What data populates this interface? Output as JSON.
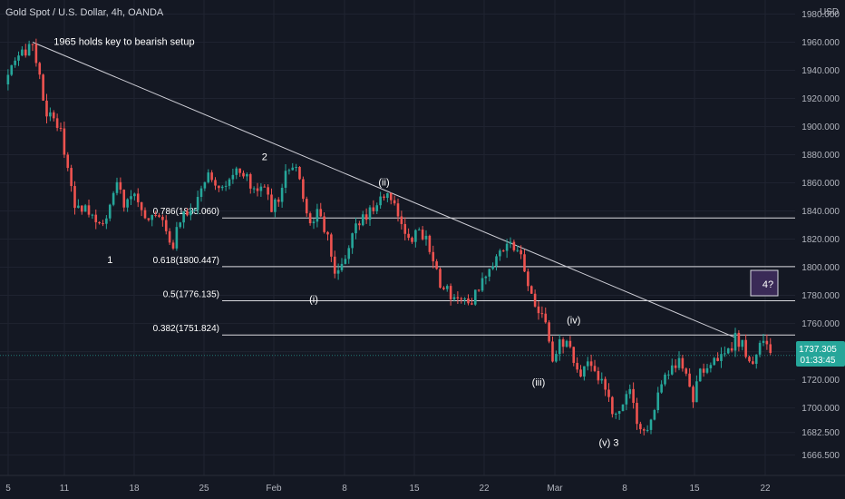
{
  "header": {
    "symbol": "Gold Spot / U.S. Dollar, 4h, OANDA",
    "currency": "USD"
  },
  "price_badge": {
    "price": "1737.305",
    "countdown": "01:33:45",
    "color": "#26a69a"
  },
  "colors": {
    "background": "#141823",
    "grid": "#1f2330",
    "up": "#26a69a",
    "down": "#ef5350",
    "text": "#b2b5be",
    "annotation": "#ffffff",
    "box_fill": "#3a2a57"
  },
  "chart_data": {
    "type": "candlestick",
    "timeframe": "4h",
    "x_ticks": [
      "5",
      "11",
      "18",
      "25",
      "Feb",
      "8",
      "15",
      "22",
      "Mar",
      "8",
      "15",
      "22"
    ],
    "y_ticks": [
      1980,
      1960,
      1940,
      1920,
      1900,
      1880,
      1860,
      1840,
      1820,
      1800,
      1780,
      1760,
      1740,
      1720,
      1700,
      1682.5,
      1666.5
    ],
    "y_tick_labels": [
      "1980.000",
      "1960.000",
      "1940.000",
      "1920.000",
      "1900.000",
      "1880.000",
      "1860.000",
      "1840.000",
      "1820.000",
      "1800.000",
      "1780.000",
      "1760.000",
      "1740.000",
      "1720.000",
      "1700.000",
      "1682.500",
      "1666.500"
    ],
    "ylim": [
      1652,
      1990
    ],
    "last_price": 1737.305,
    "path_points": [
      [
        0,
        1930
      ],
      [
        2,
        1950
      ],
      [
        4,
        1960
      ],
      [
        5,
        1935
      ],
      [
        6,
        1910
      ],
      [
        7,
        1905
      ],
      [
        8,
        1895
      ],
      [
        10,
        1845
      ],
      [
        12,
        1840
      ],
      [
        14,
        1830
      ],
      [
        16,
        1860
      ],
      [
        17,
        1845
      ],
      [
        19,
        1850
      ],
      [
        20,
        1835
      ],
      [
        22,
        1838
      ],
      [
        24,
        1815
      ],
      [
        25,
        1835
      ],
      [
        27,
        1845
      ],
      [
        29,
        1870
      ],
      [
        31,
        1855
      ],
      [
        33,
        1870
      ],
      [
        35,
        1860
      ],
      [
        37,
        1855
      ],
      [
        38,
        1840
      ],
      [
        39,
        1850
      ],
      [
        40,
        1865
      ],
      [
        41,
        1875
      ],
      [
        42,
        1860
      ],
      [
        43,
        1835
      ],
      [
        45,
        1838
      ],
      [
        46,
        1820
      ],
      [
        47,
        1795
      ],
      [
        48,
        1800
      ],
      [
        49,
        1815
      ],
      [
        50,
        1830
      ],
      [
        52,
        1840
      ],
      [
        54,
        1848
      ],
      [
        55,
        1850
      ],
      [
        56,
        1835
      ],
      [
        57,
        1828
      ],
      [
        58,
        1822
      ],
      [
        60,
        1825
      ],
      [
        61,
        1805
      ],
      [
        62,
        1790
      ],
      [
        64,
        1775
      ],
      [
        66,
        1775
      ],
      [
        67,
        1780
      ],
      [
        68,
        1790
      ],
      [
        70,
        1810
      ],
      [
        72,
        1815
      ],
      [
        73,
        1810
      ],
      [
        74,
        1800
      ],
      [
        75,
        1780
      ],
      [
        76,
        1770
      ],
      [
        77,
        1760
      ],
      [
        78,
        1730
      ],
      [
        79,
        1745
      ],
      [
        80,
        1750
      ],
      [
        81,
        1730
      ],
      [
        82,
        1722
      ],
      [
        83,
        1730
      ],
      [
        84,
        1725
      ],
      [
        85,
        1718
      ],
      [
        86,
        1705
      ],
      [
        87,
        1692
      ],
      [
        88,
        1700
      ],
      [
        89,
        1712
      ],
      [
        90,
        1690
      ],
      [
        91,
        1683
      ],
      [
        92,
        1690
      ],
      [
        93,
        1710
      ],
      [
        94,
        1720
      ],
      [
        95,
        1730
      ],
      [
        96,
        1735
      ],
      [
        97,
        1725
      ],
      [
        98,
        1705
      ],
      [
        99,
        1725
      ],
      [
        100,
        1730
      ],
      [
        101,
        1735
      ],
      [
        102,
        1738
      ],
      [
        103,
        1740
      ],
      [
        104,
        1750
      ],
      [
        105,
        1745
      ],
      [
        106,
        1730
      ],
      [
        107,
        1740
      ],
      [
        108,
        1745
      ],
      [
        109,
        1737.3
      ]
    ],
    "trendline": {
      "from": [
        4,
        1960
      ],
      "to": [
        104,
        1750
      ]
    },
    "fib_levels": [
      {
        "label": "0.786(1835.060)",
        "value": 1835.06
      },
      {
        "label": "0.618(1800.447)",
        "value": 1800.447
      },
      {
        "label": "0.5(1776.135)",
        "value": 1776.135
      },
      {
        "label": "0.382(1751.824)",
        "value": 1751.824
      }
    ],
    "annotations": [
      {
        "text": "1965 holds key to bearish setup",
        "x": 7,
        "y": 1958
      },
      {
        "text": "1",
        "x": 15,
        "y": 1803
      },
      {
        "text": "2",
        "x": 37,
        "y": 1876
      },
      {
        "text": "(ii)",
        "x": 54,
        "y": 1858
      },
      {
        "text": "(i)",
        "x": 44,
        "y": 1775
      },
      {
        "text": "(iv)",
        "x": 81,
        "y": 1760
      },
      {
        "text": "(iii)",
        "x": 76,
        "y": 1716
      },
      {
        "text": "(v) 3",
        "x": 86,
        "y": 1673
      }
    ],
    "box_label": "4?"
  }
}
